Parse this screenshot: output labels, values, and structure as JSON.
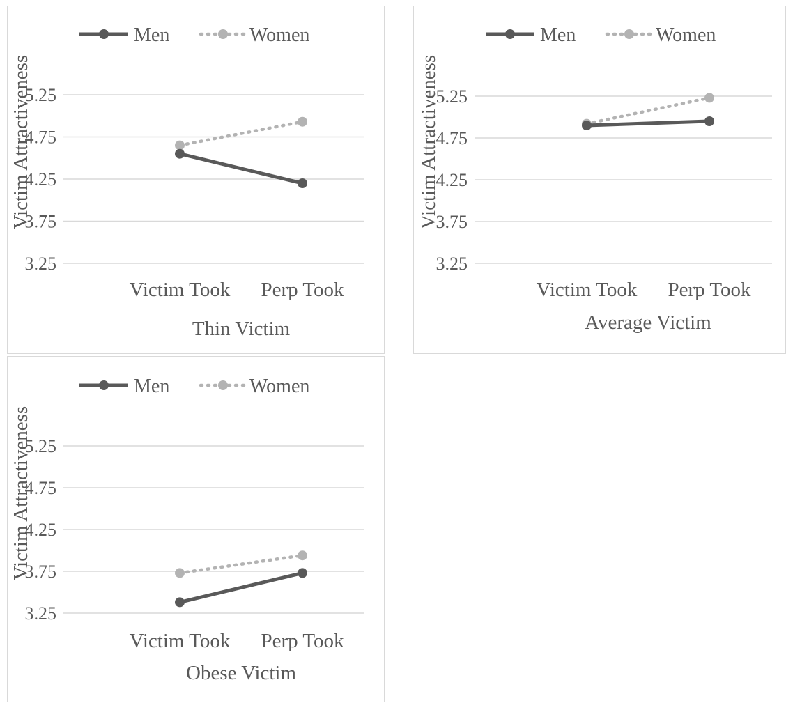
{
  "colors": {
    "men": "#595959",
    "women": "#b3b3b3",
    "grid": "#d9d9d9",
    "text": "#595959",
    "border": "#d9d9d9"
  },
  "chart_data": [
    {
      "type": "line",
      "title": "",
      "xlabel": "Thin Victim",
      "ylabel": "Victim Attractiveness",
      "categories": [
        "Victim Took",
        "Perp Took"
      ],
      "yticks": [
        "3.25",
        "3.75",
        "4.25",
        "4.75",
        "5.25"
      ],
      "ylim": [
        3.25,
        5.25
      ],
      "grid": true,
      "legend": "top",
      "series": [
        {
          "name": "Men",
          "style": "solid",
          "values": [
            4.55,
            4.2
          ]
        },
        {
          "name": "Women",
          "style": "dotted",
          "values": [
            4.65,
            4.93
          ]
        }
      ]
    },
    {
      "type": "line",
      "title": "",
      "xlabel": "Average Victim",
      "ylabel": "Victim Attractiveness",
      "categories": [
        "Victim Took",
        "Perp Took"
      ],
      "yticks": [
        "3.25",
        "3.75",
        "4.25",
        "4.75",
        "5.25"
      ],
      "ylim": [
        3.25,
        5.25
      ],
      "grid": true,
      "legend": "top",
      "series": [
        {
          "name": "Men",
          "style": "solid",
          "values": [
            4.9,
            4.95
          ]
        },
        {
          "name": "Women",
          "style": "dotted",
          "values": [
            4.92,
            5.23
          ]
        }
      ]
    },
    {
      "type": "line",
      "title": "",
      "xlabel": "Obese Victim",
      "ylabel": "Victim Attractiveness",
      "categories": [
        "Victim Took",
        "Perp Took"
      ],
      "yticks": [
        "3.25",
        "3.75",
        "4.25",
        "4.75",
        "5.25"
      ],
      "ylim": [
        3.25,
        5.25
      ],
      "grid": true,
      "legend": "top",
      "series": [
        {
          "name": "Men",
          "style": "solid",
          "values": [
            3.38,
            3.73
          ]
        },
        {
          "name": "Women",
          "style": "dotted",
          "values": [
            3.73,
            3.94
          ]
        }
      ]
    }
  ]
}
